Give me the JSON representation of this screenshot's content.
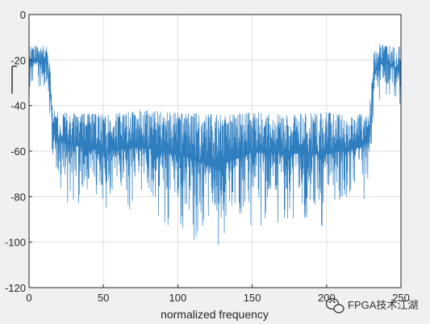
{
  "chart_data": {
    "type": "line",
    "title": "",
    "xlabel": "normalized frequency",
    "ylabel": "",
    "xlim": [
      0,
      250
    ],
    "ylim": [
      -120,
      0
    ],
    "x_ticks": [
      0,
      50,
      100,
      150,
      200,
      250
    ],
    "x_tick_labels": [
      "0",
      "50",
      "100",
      "150",
      "200",
      "250"
    ],
    "y_ticks": [
      0,
      -20,
      -40,
      -60,
      -80,
      -100,
      -120
    ],
    "y_tick_labels": [
      "0",
      "-20",
      "-40",
      "-60",
      "-80",
      "-100",
      "-120"
    ],
    "grid": true,
    "legend": "none",
    "series": [
      {
        "color": "#2f7ec0",
        "x": [
          0,
          3,
          6,
          9,
          12,
          14,
          16,
          18,
          25,
          50,
          75,
          100,
          125,
          150,
          175,
          200,
          220,
          228,
          230,
          232,
          235,
          240,
          245,
          250
        ],
        "upper_envelope": [
          -14,
          -13,
          -14,
          -13,
          -14,
          -22,
          -42,
          -43,
          -43,
          -44,
          -42,
          -43,
          -44,
          -43,
          -44,
          -43,
          -44,
          -43,
          -33,
          -15,
          -13,
          -13,
          -14,
          -14
        ],
        "lower_envelope": [
          -40,
          -35,
          -33,
          -32,
          -36,
          -55,
          -68,
          -75,
          -82,
          -90,
          -88,
          -95,
          -110,
          -93,
          -92,
          -95,
          -86,
          -80,
          -66,
          -46,
          -40,
          -36,
          -40,
          -48
        ]
      }
    ]
  },
  "watermark": {
    "text": "FPGA技术江湖",
    "icon": "wechat-icon",
    "color": "#333333"
  }
}
